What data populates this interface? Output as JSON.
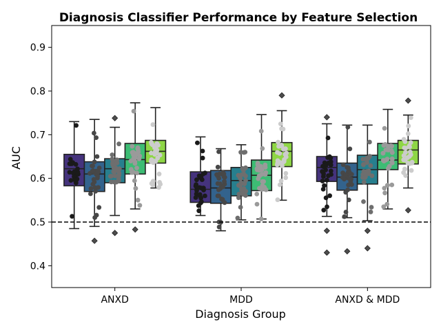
{
  "chart_data": {
    "type": "box",
    "title": "Diagnosis Classifier Performance by Feature Selection",
    "xlabel": "Diagnosis Group",
    "ylabel": "AUC",
    "ylim": [
      0.35,
      0.95
    ],
    "yticks": [
      "0.4",
      "0.5",
      "0.6",
      "0.7",
      "0.8",
      "0.9"
    ],
    "categories": [
      "ANXD",
      "MDD",
      "ANXD & MDD"
    ],
    "reference_line": {
      "y": 0.5,
      "style": "dashed",
      "color": "#000000"
    },
    "grid": false,
    "legend": "none",
    "box_colors": [
      "#45337d",
      "#33638d",
      "#277f8e",
      "#3dbc74",
      "#8ed645"
    ],
    "point_colors": [
      "#1a1a1a",
      "#474747",
      "#6e6e6e",
      "#9a9a9a",
      "#cccccc"
    ],
    "groups": [
      {
        "category": "ANXD",
        "boxes": [
          {
            "whisker_low": 0.485,
            "q1": 0.583,
            "median": 0.622,
            "q3": 0.655,
            "whisker_high": 0.73,
            "outliers": []
          },
          {
            "whisker_low": 0.49,
            "q1": 0.57,
            "median": 0.61,
            "q3": 0.638,
            "whisker_high": 0.735,
            "outliers": [
              0.457
            ]
          },
          {
            "whisker_low": 0.515,
            "q1": 0.59,
            "median": 0.622,
            "q3": 0.645,
            "whisker_high": 0.717,
            "outliers": [
              0.738,
              0.475
            ]
          },
          {
            "whisker_low": 0.53,
            "q1": 0.61,
            "median": 0.643,
            "q3": 0.68,
            "whisker_high": 0.773,
            "outliers": [
              0.483
            ]
          },
          {
            "whisker_low": 0.578,
            "q1": 0.635,
            "median": 0.662,
            "q3": 0.687,
            "whisker_high": 0.762,
            "outliers": []
          }
        ]
      },
      {
        "category": "MDD",
        "boxes": [
          {
            "whisker_low": 0.515,
            "q1": 0.545,
            "median": 0.575,
            "q3": 0.615,
            "whisker_high": 0.695,
            "outliers": []
          },
          {
            "whisker_low": 0.48,
            "q1": 0.543,
            "median": 0.578,
            "q3": 0.618,
            "whisker_high": 0.668,
            "outliers": []
          },
          {
            "whisker_low": 0.505,
            "q1": 0.56,
            "median": 0.595,
            "q3": 0.625,
            "whisker_high": 0.677,
            "outliers": []
          },
          {
            "whisker_low": 0.507,
            "q1": 0.572,
            "median": 0.607,
            "q3": 0.642,
            "whisker_high": 0.746,
            "outliers": []
          },
          {
            "whisker_low": 0.55,
            "q1": 0.627,
            "median": 0.662,
            "q3": 0.682,
            "whisker_high": 0.755,
            "outliers": [
              0.79
            ]
          }
        ]
      },
      {
        "category": "ANXD & MDD",
        "boxes": [
          {
            "whisker_low": 0.513,
            "q1": 0.593,
            "median": 0.625,
            "q3": 0.65,
            "whisker_high": 0.725,
            "outliers": [
              0.74,
              0.48,
              0.43
            ]
          },
          {
            "whisker_low": 0.51,
            "q1": 0.573,
            "median": 0.603,
            "q3": 0.635,
            "whisker_high": 0.722,
            "outliers": [
              0.433
            ]
          },
          {
            "whisker_low": 0.503,
            "q1": 0.587,
            "median": 0.62,
            "q3": 0.653,
            "whisker_high": 0.722,
            "outliers": [
              0.48,
              0.44
            ]
          },
          {
            "whisker_low": 0.53,
            "q1": 0.62,
            "median": 0.642,
            "q3": 0.68,
            "whisker_high": 0.758,
            "outliers": []
          },
          {
            "whisker_low": 0.578,
            "q1": 0.633,
            "median": 0.665,
            "q3": 0.687,
            "whisker_high": 0.745,
            "outliers": [
              0.778,
              0.527
            ]
          }
        ]
      }
    ]
  }
}
